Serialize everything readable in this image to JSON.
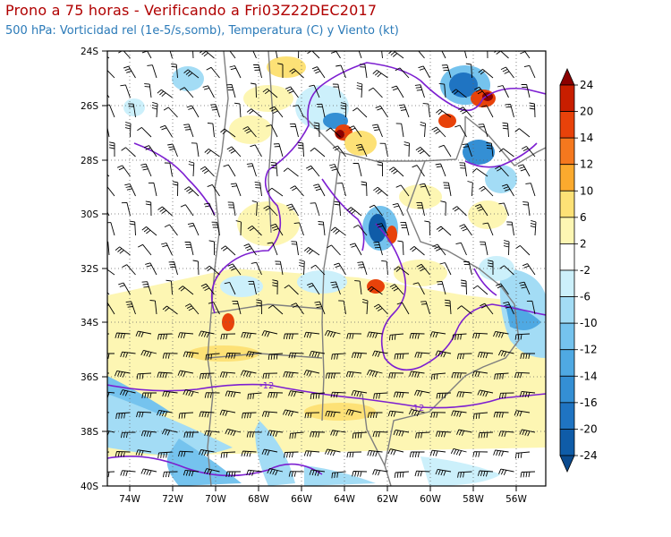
{
  "header": {
    "title": "Prono a 75 horas - Verificando a Fri03Z22DEC2017",
    "subtitle": "500 hPa: Vorticidad rel (1e-5/s,somb), Temperatura (C) y Viento (kt)"
  },
  "map": {
    "lat_labels": [
      "24S",
      "26S",
      "28S",
      "30S",
      "32S",
      "34S",
      "36S",
      "38S",
      "40S"
    ],
    "lon_labels": [
      "74W",
      "72W",
      "70W",
      "68W",
      "66W",
      "64W",
      "62W",
      "60W",
      "58W",
      "56W"
    ],
    "contour_labels": [
      "-12",
      "-12"
    ],
    "extent": {
      "lon_min": -75.5,
      "lon_max": -55,
      "lat_min": -40,
      "lat_max": -24
    }
  },
  "colorbar": {
    "labels": [
      "24",
      "20",
      "14",
      "12",
      "10",
      "6",
      "2",
      "-2",
      "-6",
      "-10",
      "-12",
      "-14",
      "-16",
      "-20",
      "-24"
    ],
    "colors": [
      "#8b0000",
      "#c81e00",
      "#e8420a",
      "#f5781e",
      "#fbaa2e",
      "#fde176",
      "#fdf6b3",
      "#ffffff",
      "#ccf0fb",
      "#a3dcf5",
      "#75c3ee",
      "#4fa9e3",
      "#348fd4",
      "#1f74c2",
      "#0f5ca8",
      "#0a4a8e"
    ]
  },
  "colors": {
    "title": "#b00000",
    "subtitle": "#2a7ab8",
    "contour": "#7d1fd1",
    "border": "#7f7f7f"
  }
}
